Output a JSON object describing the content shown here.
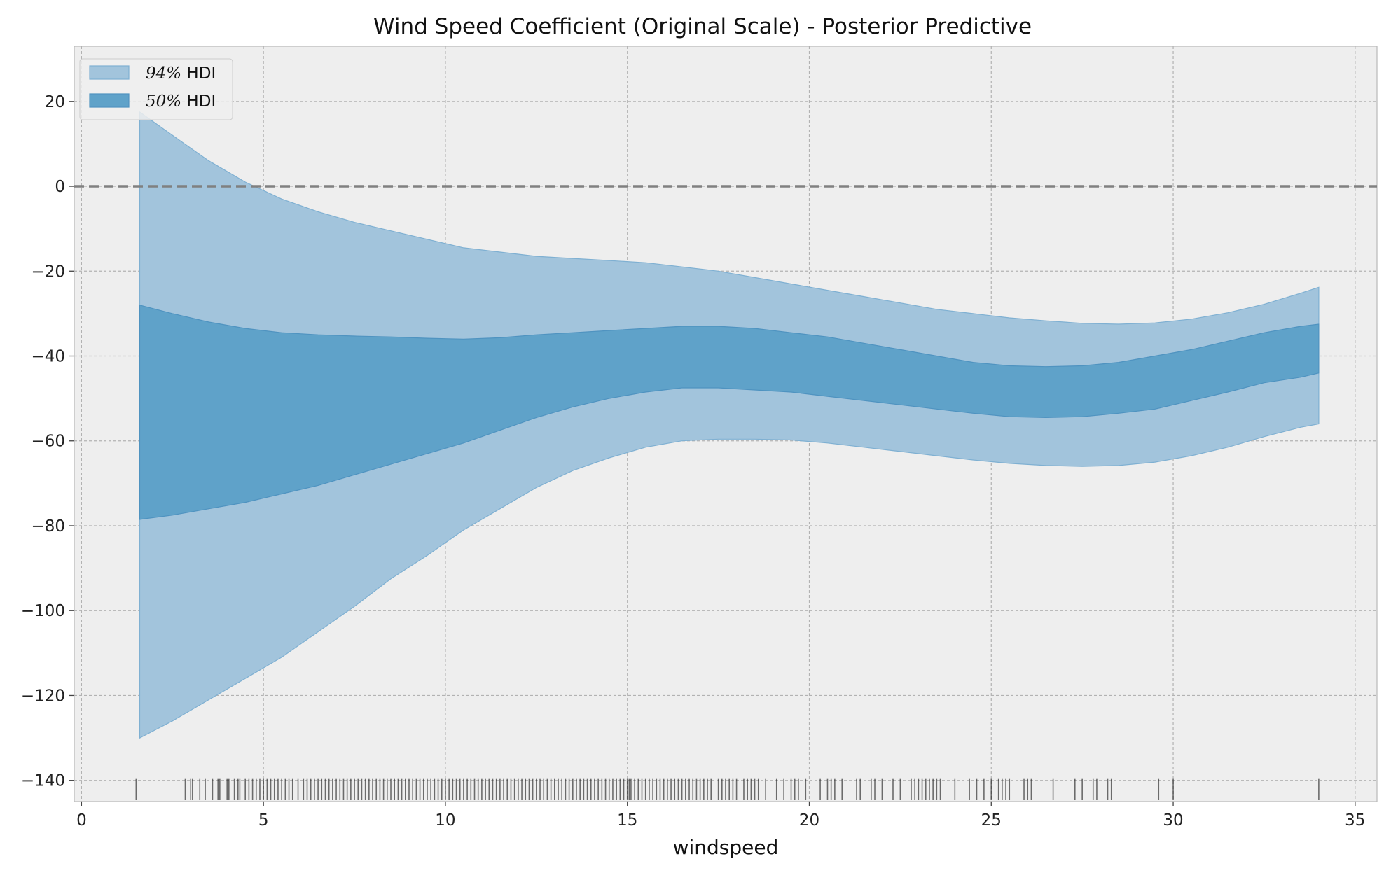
{
  "chart_data": {
    "type": "area",
    "title": "Wind Speed Coefficient (Original Scale) - Posterior Predictive",
    "xlabel": "windspeed",
    "ylabel": "",
    "xlim": [
      -0.2,
      35.6
    ],
    "ylim": [
      -145,
      33
    ],
    "x_ticks": [
      0,
      5,
      10,
      15,
      20,
      25,
      30,
      35
    ],
    "y_ticks": [
      20,
      0,
      -20,
      -40,
      -60,
      -80,
      -100,
      -120,
      -140
    ],
    "y_tick_labels": [
      "20",
      "0",
      "−20",
      "−40",
      "−60",
      "−80",
      "−100",
      "−120",
      "−140"
    ],
    "grid": true,
    "legend_position": "top-left",
    "reference_line": {
      "y": 0,
      "style": "dashed",
      "color": "#808080"
    },
    "series": [
      {
        "name": "94% HDI",
        "legend_label": "94% HDI",
        "legend_prefix": "94%",
        "legend_suffix": " HDI",
        "color": "#a2c4dc",
        "edge": "#7fb0d2",
        "x": [
          1.6,
          2.5,
          3.5,
          4.5,
          5.5,
          6.5,
          7.5,
          8.5,
          9.5,
          10.5,
          11.5,
          12.5,
          13.5,
          14.5,
          15.5,
          16.5,
          17.5,
          18.5,
          19.5,
          20.5,
          21.5,
          22.5,
          23.5,
          24.5,
          25.5,
          26.5,
          27.5,
          28.5,
          29.5,
          30.5,
          31.5,
          32.5,
          33.5,
          34.0
        ],
        "upper": [
          17.5,
          12,
          6,
          1,
          -3,
          -6,
          -8.5,
          -10.5,
          -12.5,
          -14.5,
          -15.5,
          -16.5,
          -17,
          -17.5,
          -18,
          -19,
          -20,
          -21.5,
          -23,
          -24.5,
          -26,
          -27.5,
          -29,
          -30,
          -31,
          -31.7,
          -32.3,
          -32.5,
          -32.2,
          -31.3,
          -29.8,
          -27.8,
          -25.2,
          -23.8
        ],
        "lower": [
          -130,
          -126,
          -121,
          -116,
          -111,
          -105,
          -99,
          -92.5,
          -87,
          -81,
          -76,
          -71,
          -67,
          -64,
          -61.5,
          -60,
          -59.6,
          -59.6,
          -59.8,
          -60.5,
          -61.5,
          -62.5,
          -63.5,
          -64.5,
          -65.3,
          -65.8,
          -66,
          -65.8,
          -65,
          -63.5,
          -61.5,
          -59,
          -56.8,
          -56
        ]
      },
      {
        "name": "50% HDI",
        "legend_label": "50% HDI",
        "legend_prefix": "50%",
        "legend_suffix": " HDI",
        "color": "#5fa2c9",
        "edge": "#4f93c0",
        "x": [
          1.6,
          2.5,
          3.5,
          4.5,
          5.5,
          6.5,
          7.5,
          8.5,
          9.5,
          10.5,
          11.5,
          12.5,
          13.5,
          14.5,
          15.5,
          16.5,
          17.5,
          18.5,
          19.5,
          20.5,
          21.5,
          22.5,
          23.5,
          24.5,
          25.5,
          26.5,
          27.5,
          28.5,
          29.5,
          30.5,
          31.5,
          32.5,
          33.5,
          34.0
        ],
        "upper": [
          -28,
          -30,
          -32,
          -33.5,
          -34.5,
          -35,
          -35.3,
          -35.5,
          -35.8,
          -36,
          -35.7,
          -35,
          -34.5,
          -34,
          -33.5,
          -33,
          -33,
          -33.5,
          -34.5,
          -35.5,
          -37,
          -38.5,
          -40,
          -41.5,
          -42.3,
          -42.5,
          -42.3,
          -41.5,
          -40,
          -38.5,
          -36.5,
          -34.5,
          -33,
          -32.5
        ],
        "lower": [
          -78.5,
          -77.5,
          -76,
          -74.5,
          -72.5,
          -70.5,
          -68,
          -65.5,
          -63,
          -60.5,
          -57.5,
          -54.5,
          -52,
          -50,
          -48.5,
          -47.5,
          -47.5,
          -48,
          -48.5,
          -49.5,
          -50.5,
          -51.5,
          -52.5,
          -53.5,
          -54.3,
          -54.5,
          -54.3,
          -53.5,
          -52.5,
          -50.5,
          -48.5,
          -46.3,
          -45,
          -44
        ]
      }
    ],
    "rug": {
      "y": -140,
      "color": "#000000",
      "x": [
        1.5,
        2.85,
        3.0,
        3.05,
        3.25,
        3.4,
        3.6,
        3.75,
        3.8,
        4.0,
        4.05,
        4.2,
        4.3,
        4.35,
        4.5,
        4.6,
        4.7,
        4.8,
        4.9,
        5.0,
        5.1,
        5.2,
        5.3,
        5.4,
        5.5,
        5.6,
        5.7,
        5.8,
        5.95,
        6.1,
        6.2,
        6.3,
        6.4,
        6.5,
        6.6,
        6.7,
        6.8,
        6.9,
        7.0,
        7.1,
        7.2,
        7.3,
        7.4,
        7.5,
        7.6,
        7.7,
        7.8,
        7.9,
        8.0,
        8.1,
        8.2,
        8.3,
        8.4,
        8.5,
        8.6,
        8.7,
        8.8,
        8.9,
        9.0,
        9.1,
        9.2,
        9.3,
        9.4,
        9.5,
        9.6,
        9.7,
        9.8,
        9.9,
        10.0,
        10.1,
        10.2,
        10.3,
        10.4,
        10.5,
        10.6,
        10.7,
        10.8,
        10.9,
        11.0,
        11.1,
        11.2,
        11.3,
        11.4,
        11.5,
        11.6,
        11.7,
        11.8,
        11.9,
        12.0,
        12.1,
        12.2,
        12.3,
        12.4,
        12.5,
        12.6,
        12.7,
        12.8,
        12.9,
        13.0,
        13.1,
        13.2,
        13.3,
        13.4,
        13.5,
        13.6,
        13.7,
        13.8,
        13.9,
        14.0,
        14.1,
        14.2,
        14.3,
        14.4,
        14.5,
        14.6,
        14.7,
        14.8,
        14.9,
        15.0,
        15.05,
        15.1,
        15.2,
        15.3,
        15.4,
        15.5,
        15.6,
        15.7,
        15.8,
        15.9,
        16.0,
        16.1,
        16.2,
        16.3,
        16.4,
        16.5,
        16.6,
        16.7,
        16.8,
        16.9,
        17.0,
        17.1,
        17.2,
        17.3,
        17.5,
        17.6,
        17.7,
        17.8,
        17.9,
        18.0,
        18.2,
        18.3,
        18.4,
        18.5,
        18.6,
        18.8,
        19.1,
        19.3,
        19.5,
        19.6,
        19.7,
        19.9,
        20.3,
        20.5,
        20.6,
        20.7,
        20.9,
        21.3,
        21.4,
        21.7,
        21.8,
        22.0,
        22.3,
        22.5,
        22.8,
        22.9,
        23.0,
        23.1,
        23.2,
        23.3,
        23.4,
        23.5,
        23.6,
        24.0,
        24.4,
        24.6,
        24.8,
        25.0,
        25.2,
        25.3,
        25.4,
        25.5,
        25.9,
        26.0,
        26.1,
        26.7,
        27.3,
        27.5,
        27.8,
        27.9,
        28.2,
        28.3,
        29.6,
        30.0,
        34.0
      ]
    }
  }
}
